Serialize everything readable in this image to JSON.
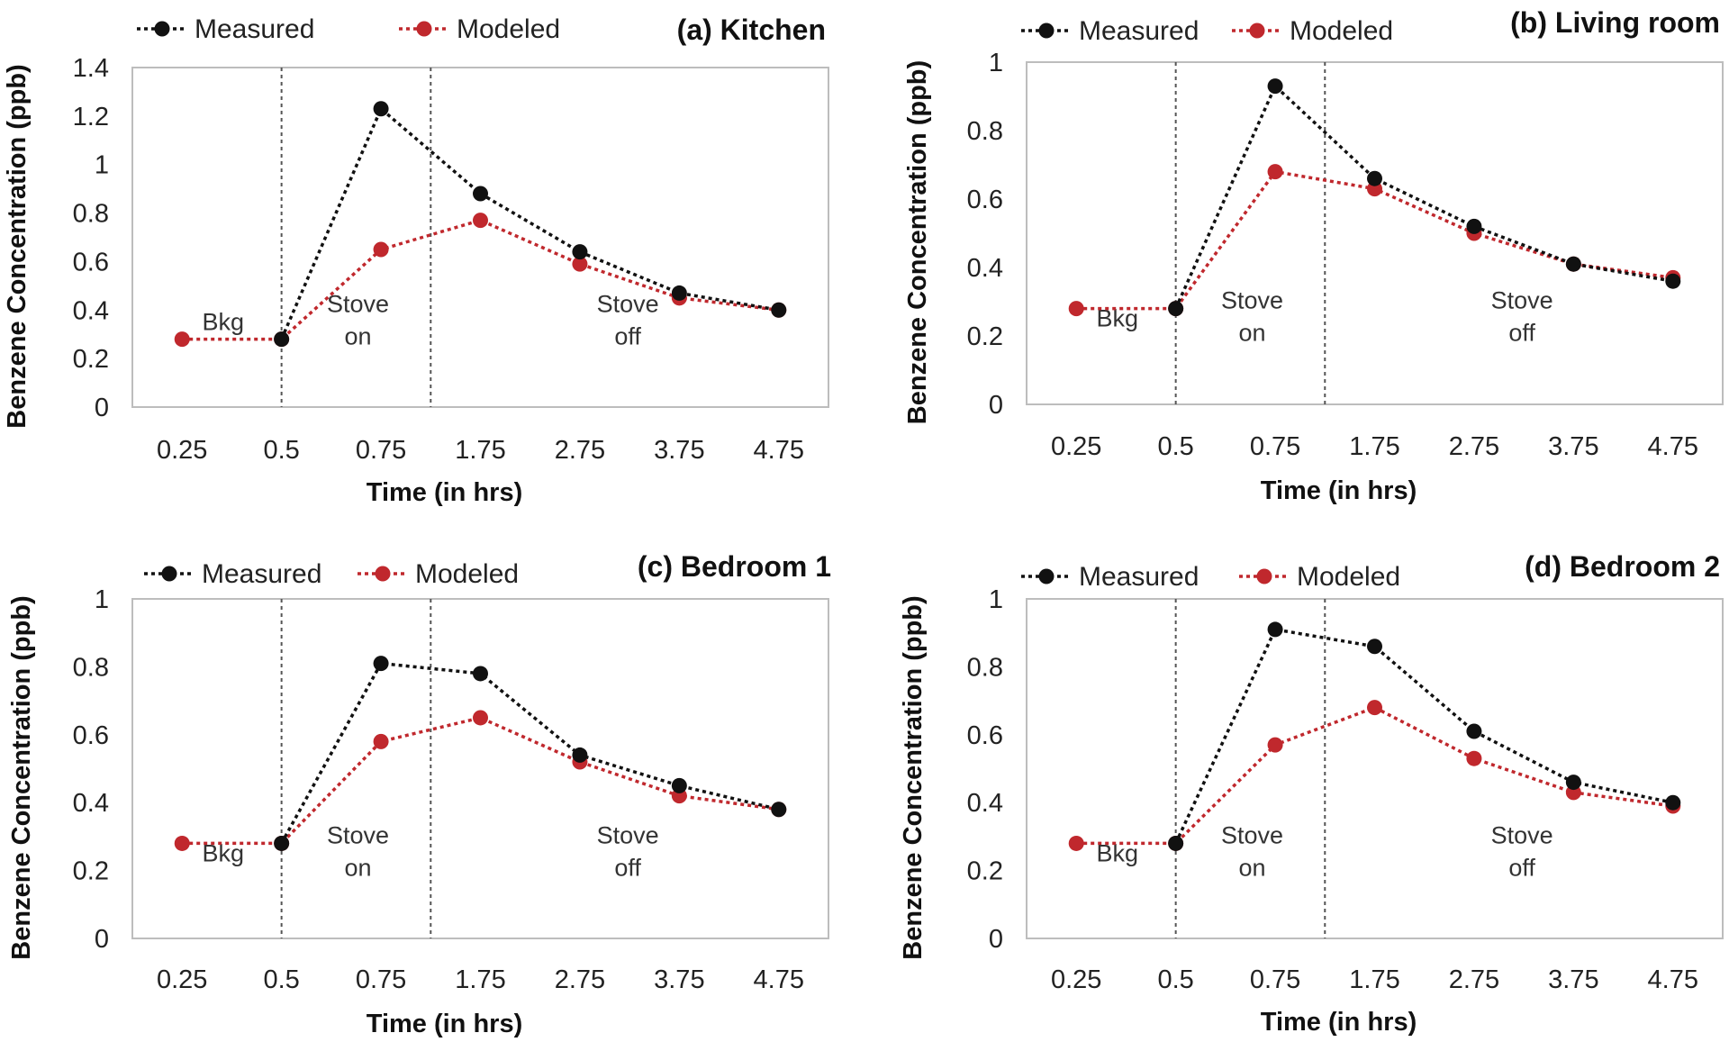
{
  "chart_data": [
    {
      "type": "line",
      "title": "(a) Kitchen",
      "xlabel": "Time (in hrs)",
      "ylabel": "Benzene Concentration (ppb)",
      "categories": [
        "0.25",
        "0.5",
        "0.75",
        "1.75",
        "2.75",
        "3.75",
        "4.75"
      ],
      "ylim": [
        0,
        1.4
      ],
      "yticks": [
        "0",
        "0.2",
        "0.4",
        "0.6",
        "0.8",
        "1",
        "1.2",
        "1.4"
      ],
      "series": [
        {
          "name": "Measured",
          "color": "#111111",
          "values": [
            null,
            0.28,
            1.23,
            0.88,
            0.64,
            0.47,
            0.4
          ]
        },
        {
          "name": "Modeled",
          "color": "#c0282d",
          "values": [
            0.28,
            0.28,
            0.65,
            0.77,
            0.59,
            0.45,
            0.4
          ]
        }
      ],
      "phases": [
        {
          "lines": [
            "Bkg"
          ]
        },
        {
          "lines": [
            "Stove",
            "on"
          ]
        },
        {
          "lines": [
            "Stove",
            "off"
          ]
        }
      ]
    },
    {
      "type": "line",
      "title": "(b) Living room",
      "xlabel": "Time (in hrs)",
      "ylabel": "Benzene Concentration (ppb)",
      "categories": [
        "0.25",
        "0.5",
        "0.75",
        "1.75",
        "2.75",
        "3.75",
        "4.75"
      ],
      "ylim": [
        0,
        1
      ],
      "yticks": [
        "0",
        "0.2",
        "0.4",
        "0.6",
        "0.8",
        "1"
      ],
      "series": [
        {
          "name": "Measured",
          "color": "#111111",
          "values": [
            null,
            0.28,
            0.93,
            0.66,
            0.52,
            0.41,
            0.36
          ]
        },
        {
          "name": "Modeled",
          "color": "#c0282d",
          "values": [
            0.28,
            0.28,
            0.68,
            0.63,
            0.5,
            0.41,
            0.37
          ]
        }
      ],
      "phases": [
        {
          "lines": [
            "Bkg"
          ]
        },
        {
          "lines": [
            "Stove",
            "on"
          ]
        },
        {
          "lines": [
            "Stove",
            "off"
          ]
        }
      ]
    },
    {
      "type": "line",
      "title": "(c) Bedroom 1",
      "xlabel": "Time (in hrs)",
      "ylabel": "Benzene Concentration (ppb)",
      "categories": [
        "0.25",
        "0.5",
        "0.75",
        "1.75",
        "2.75",
        "3.75",
        "4.75"
      ],
      "ylim": [
        0,
        1
      ],
      "yticks": [
        "0",
        "0.2",
        "0.4",
        "0.6",
        "0.8",
        "1"
      ],
      "series": [
        {
          "name": "Measured",
          "color": "#111111",
          "values": [
            null,
            0.28,
            0.81,
            0.78,
            0.54,
            0.45,
            0.38
          ]
        },
        {
          "name": "Modeled",
          "color": "#c0282d",
          "values": [
            0.28,
            0.28,
            0.58,
            0.65,
            0.52,
            0.42,
            0.38
          ]
        }
      ],
      "phases": [
        {
          "lines": [
            "Bkg"
          ]
        },
        {
          "lines": [
            "Stove",
            "on"
          ]
        },
        {
          "lines": [
            "Stove",
            "off"
          ]
        }
      ]
    },
    {
      "type": "line",
      "title": "(d) Bedroom 2",
      "xlabel": "Time (in hrs)",
      "ylabel": "Benzene Concentration (ppb)",
      "categories": [
        "0.25",
        "0.5",
        "0.75",
        "1.75",
        "2.75",
        "3.75",
        "4.75"
      ],
      "ylim": [
        0,
        1
      ],
      "yticks": [
        "0",
        "0.2",
        "0.4",
        "0.6",
        "0.8",
        "1"
      ],
      "series": [
        {
          "name": "Measured",
          "color": "#111111",
          "values": [
            null,
            0.28,
            0.91,
            0.86,
            0.61,
            0.46,
            0.4
          ]
        },
        {
          "name": "Modeled",
          "color": "#c0282d",
          "values": [
            0.28,
            0.28,
            0.57,
            0.68,
            0.53,
            0.43,
            0.39
          ]
        }
      ],
      "phases": [
        {
          "lines": [
            "Bkg"
          ]
        },
        {
          "lines": [
            "Stove",
            "on"
          ]
        },
        {
          "lines": [
            "Stove",
            "off"
          ]
        }
      ]
    }
  ]
}
